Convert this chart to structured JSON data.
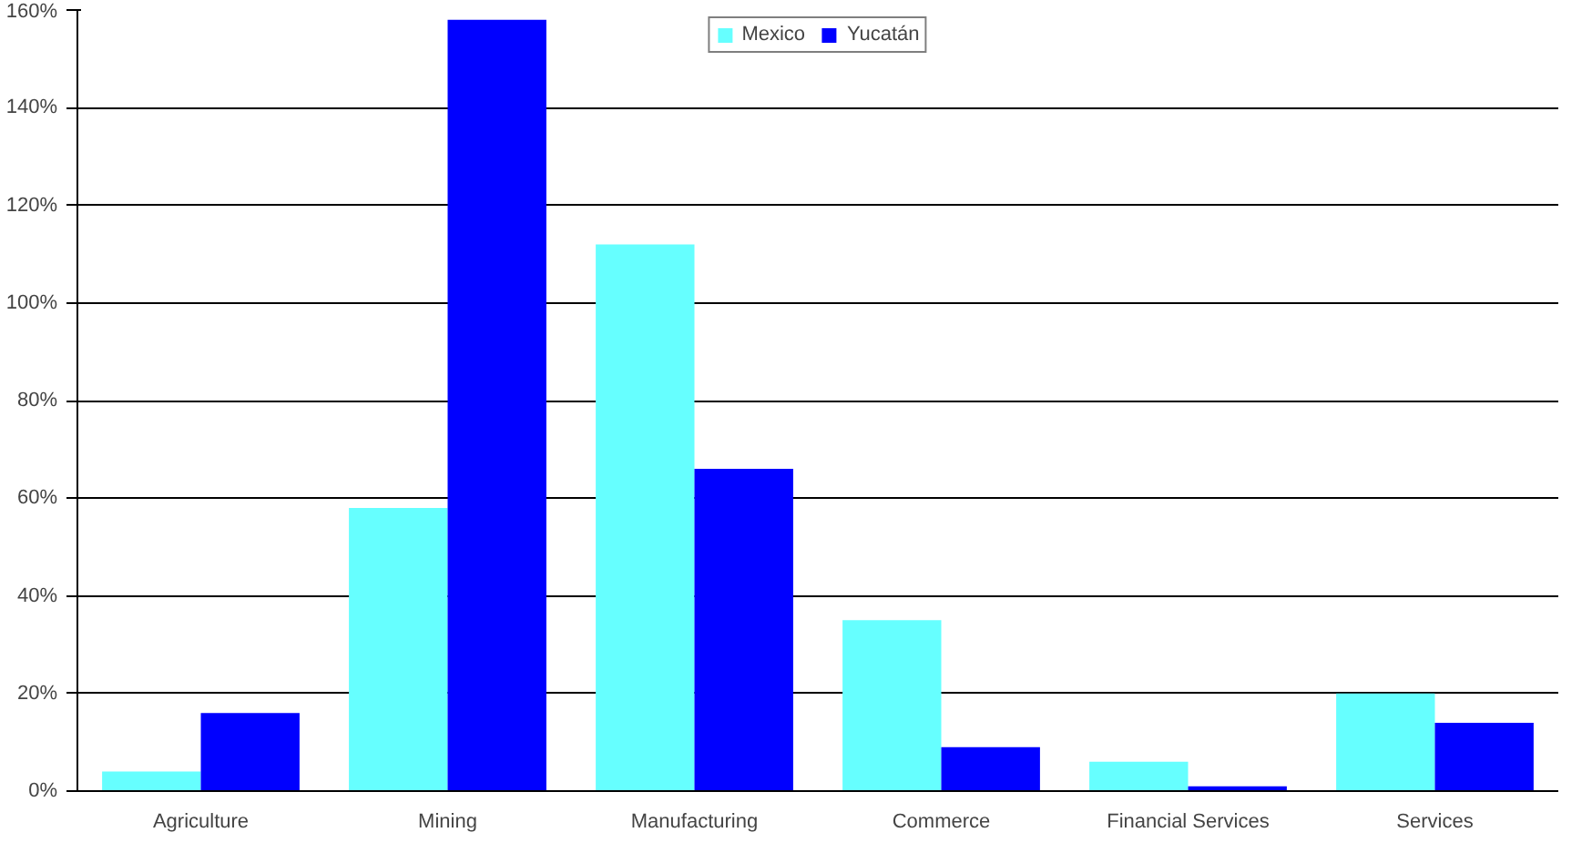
{
  "chart_data": {
    "type": "bar",
    "categories": [
      "Agriculture",
      "Mining",
      "Manufacturing",
      "Commerce",
      "Financial Services",
      "Services"
    ],
    "series": [
      {
        "name": "Mexico",
        "color": "#66ffff",
        "values": [
          4,
          58,
          112,
          35,
          6,
          20
        ]
      },
      {
        "name": "Yucatán",
        "color": "#0000ff",
        "values": [
          16,
          158,
          66,
          9,
          1,
          14
        ]
      }
    ],
    "ylim": [
      0,
      160
    ],
    "yticks": [
      {
        "value": 0,
        "label": "0%"
      },
      {
        "value": 20,
        "label": "20%"
      },
      {
        "value": 40,
        "label": "40%"
      },
      {
        "value": 60,
        "label": "60%"
      },
      {
        "value": 80,
        "label": "80%"
      },
      {
        "value": 100,
        "label": "100%"
      },
      {
        "value": 120,
        "label": "120%"
      },
      {
        "value": 140,
        "label": "140%"
      },
      {
        "value": 160,
        "label": "160%"
      }
    ],
    "grid": "y",
    "legend": "top"
  }
}
